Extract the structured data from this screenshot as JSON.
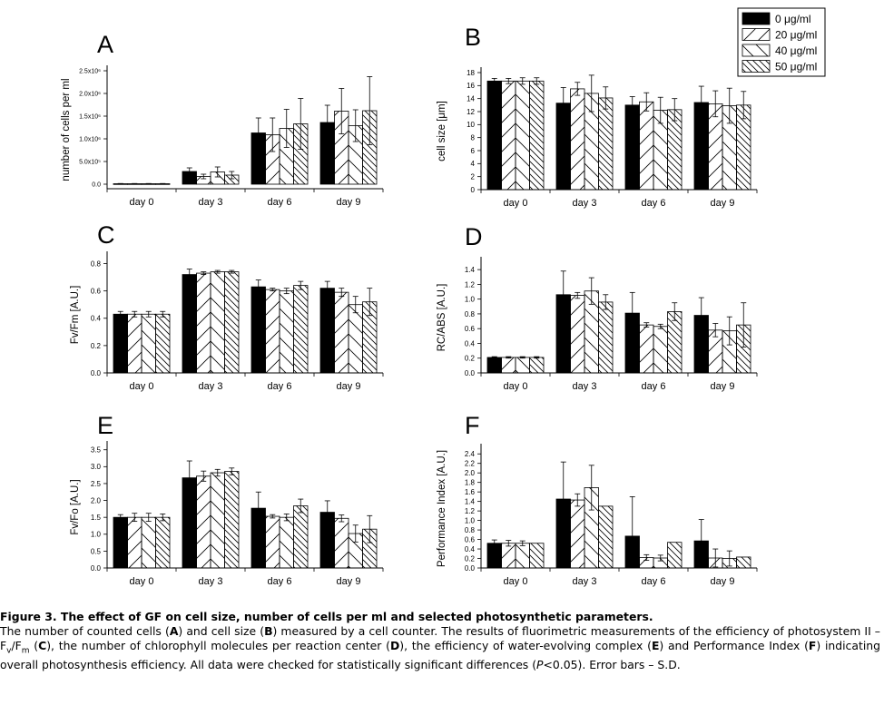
{
  "legend": {
    "placement": "top-right",
    "entries": [
      {
        "label": "0 μg/ml",
        "pattern": "solid-black"
      },
      {
        "label": "20 μg/ml",
        "pattern": "hatch-right-sparse"
      },
      {
        "label": "40 μg/ml",
        "pattern": "hatch-left-sparse"
      },
      {
        "label": "50 μg/ml",
        "pattern": "hatch-left-dense"
      }
    ]
  },
  "chart_data": [
    {
      "type": "bar",
      "panel": "A",
      "ylabel": "number of cells per ml",
      "categories": [
        "day 0",
        "day 3",
        "day 6",
        "day 9"
      ],
      "ylim": [
        -100000,
        2500000
      ],
      "yticks": [
        0,
        500000,
        1000000,
        1500000,
        2000000,
        2500000
      ],
      "ytick_labels": [
        "0.0",
        "5.0x10⁵",
        "1.0x10⁶",
        "1.5x10⁶",
        "2.0x10⁶",
        "2.5x10⁶"
      ],
      "series": [
        {
          "values": [
            10000,
            280000,
            1130000,
            1360000
          ],
          "errors": [
            5000,
            80000,
            330000,
            380000
          ]
        },
        {
          "values": [
            10000,
            170000,
            1090000,
            1610000
          ],
          "errors": [
            5000,
            50000,
            370000,
            500000
          ]
        },
        {
          "values": [
            10000,
            270000,
            1230000,
            1290000
          ],
          "errors": [
            5000,
            110000,
            420000,
            350000
          ]
        },
        {
          "values": [
            10000,
            200000,
            1330000,
            1620000
          ],
          "errors": [
            5000,
            80000,
            560000,
            750000
          ]
        }
      ]
    },
    {
      "type": "bar",
      "panel": "B",
      "ylabel": "cell size [μm]",
      "categories": [
        "day 0",
        "day 3",
        "day 6",
        "day 9"
      ],
      "ylim": [
        0,
        18
      ],
      "yticks": [
        0,
        2,
        4,
        6,
        8,
        10,
        12,
        14,
        16,
        18
      ],
      "ytick_labels": [
        "0",
        "2",
        "4",
        "6",
        "8",
        "10",
        "12",
        "14",
        "16",
        "18"
      ],
      "series": [
        {
          "values": [
            16.7,
            13.3,
            13.0,
            13.4
          ],
          "errors": [
            0.4,
            2.4,
            1.3,
            2.5
          ]
        },
        {
          "values": [
            16.7,
            15.5,
            13.5,
            13.2
          ],
          "errors": [
            0.4,
            1.0,
            1.4,
            2.0
          ]
        },
        {
          "values": [
            16.7,
            14.8,
            12.2,
            12.9
          ],
          "errors": [
            0.5,
            2.8,
            2.0,
            2.7
          ]
        },
        {
          "values": [
            16.7,
            14.1,
            12.3,
            13.0
          ],
          "errors": [
            0.5,
            1.7,
            1.7,
            2.1
          ]
        }
      ]
    },
    {
      "type": "bar",
      "panel": "C",
      "ylabel": "Fv/Fm [A.U.]",
      "categories": [
        "day 0",
        "day 3",
        "day 6",
        "day 9"
      ],
      "ylim": [
        0,
        0.85
      ],
      "yticks": [
        0.0,
        0.2,
        0.4,
        0.6,
        0.8
      ],
      "ytick_labels": [
        "0.0",
        "0.2",
        "0.4",
        "0.6",
        "0.8"
      ],
      "series": [
        {
          "values": [
            0.43,
            0.72,
            0.63,
            0.62
          ],
          "errors": [
            0.02,
            0.04,
            0.05,
            0.05
          ]
        },
        {
          "values": [
            0.43,
            0.73,
            0.61,
            0.59
          ],
          "errors": [
            0.02,
            0.01,
            0.01,
            0.03
          ]
        },
        {
          "values": [
            0.43,
            0.74,
            0.6,
            0.5
          ],
          "errors": [
            0.02,
            0.01,
            0.02,
            0.06
          ]
        },
        {
          "values": [
            0.43,
            0.74,
            0.64,
            0.52
          ],
          "errors": [
            0.02,
            0.01,
            0.03,
            0.1
          ]
        }
      ]
    },
    {
      "type": "bar",
      "panel": "D",
      "ylabel": "RC/ABS [A.U.]",
      "categories": [
        "day 0",
        "day 3",
        "day 6",
        "day 9"
      ],
      "ylim": [
        0,
        1.5
      ],
      "yticks": [
        0.0,
        0.2,
        0.4,
        0.6,
        0.8,
        1.0,
        1.2,
        1.4
      ],
      "ytick_labels": [
        "0.0",
        "0.2",
        "0.4",
        "0.6",
        "0.8",
        "1.0",
        "1.2",
        "1.4"
      ],
      "series": [
        {
          "values": [
            0.21,
            1.06,
            0.81,
            0.78
          ],
          "errors": [
            0.01,
            0.32,
            0.28,
            0.24
          ]
        },
        {
          "values": [
            0.21,
            1.05,
            0.65,
            0.58
          ],
          "errors": [
            0.01,
            0.04,
            0.03,
            0.09
          ]
        },
        {
          "values": [
            0.21,
            1.11,
            0.63,
            0.57
          ],
          "errors": [
            0.01,
            0.18,
            0.03,
            0.19
          ]
        },
        {
          "values": [
            0.21,
            0.96,
            0.83,
            0.65
          ],
          "errors": [
            0.01,
            0.1,
            0.12,
            0.3
          ]
        }
      ]
    },
    {
      "type": "bar",
      "panel": "E",
      "ylabel": "Fv/Fo [A.U.]",
      "categories": [
        "day 0",
        "day 3",
        "day 6",
        "day 9"
      ],
      "ylim": [
        0,
        3.6
      ],
      "yticks": [
        0.0,
        0.5,
        1.0,
        1.5,
        2.0,
        2.5,
        3.0,
        3.5
      ],
      "ytick_labels": [
        "0.0",
        "0.5",
        "1.0",
        "1.5",
        "2.0",
        "2.5",
        "3.0",
        "3.5"
      ],
      "series": [
        {
          "values": [
            1.5,
            2.67,
            1.77,
            1.65
          ],
          "errors": [
            0.08,
            0.5,
            0.48,
            0.34
          ]
        },
        {
          "values": [
            1.5,
            2.72,
            1.53,
            1.47
          ],
          "errors": [
            0.12,
            0.15,
            0.05,
            0.1
          ]
        },
        {
          "values": [
            1.5,
            2.82,
            1.5,
            1.02
          ],
          "errors": [
            0.12,
            0.1,
            0.1,
            0.25
          ]
        },
        {
          "values": [
            1.5,
            2.86,
            1.84,
            1.15
          ],
          "errors": [
            0.1,
            0.1,
            0.2,
            0.4
          ]
        }
      ]
    },
    {
      "type": "bar",
      "panel": "F",
      "ylabel": "Performance Index [A.U.]",
      "categories": [
        "day 0",
        "day 3",
        "day 6",
        "day 9"
      ],
      "ylim": [
        0,
        2.5
      ],
      "yticks": [
        0.0,
        0.2,
        0.4,
        0.6,
        0.8,
        1.0,
        1.2,
        1.4,
        1.6,
        1.8,
        2.0,
        2.2,
        2.4
      ],
      "ytick_labels": [
        "0.0",
        "0.2",
        "0.4",
        "0.6",
        "0.8",
        "1.0",
        "1.2",
        "1.4",
        "1.6",
        "1.8",
        "2.0",
        "2.2",
        "2.4"
      ],
      "series": [
        {
          "values": [
            0.52,
            1.45,
            0.67,
            0.57
          ],
          "errors": [
            0.07,
            0.78,
            0.83,
            0.45
          ]
        },
        {
          "values": [
            0.52,
            1.43,
            0.22,
            0.21
          ],
          "errors": [
            0.06,
            0.13,
            0.06,
            0.19
          ]
        },
        {
          "values": [
            0.52,
            1.69,
            0.21,
            0.2
          ],
          "errors": [
            0.05,
            0.47,
            0.06,
            0.16
          ]
        },
        {
          "values": [
            0.52,
            1.3,
            0.54,
            0.23
          ],
          "errors": [
            0.0,
            0.0,
            0.0,
            0.0
          ]
        }
      ]
    }
  ],
  "caption": {
    "title": "Figure 3. The effect of GF on cell size, number of cells per ml and selected photosynthetic parameters.",
    "body": [
      {
        "t": "The number of counted cells ("
      },
      {
        "t": "A",
        "b": true
      },
      {
        "t": ") and cell size ("
      },
      {
        "t": "B",
        "b": true
      },
      {
        "t": ") measured by a cell counter. The results of fluorimetric measurements of the efficiency of photosystem II – F"
      },
      {
        "t": "v",
        "sub": true
      },
      {
        "t": "/F"
      },
      {
        "t": "m",
        "sub": true
      },
      {
        "t": " ("
      },
      {
        "t": "C",
        "b": true
      },
      {
        "t": "), the number of chlorophyll molecules per reaction center ("
      },
      {
        "t": "D",
        "b": true
      },
      {
        "t": "), the efficiency of water-evolving complex ("
      },
      {
        "t": "E",
        "b": true
      },
      {
        "t": ") and Performance Index ("
      },
      {
        "t": "F",
        "b": true
      },
      {
        "t": ") indicating overall photosynthesis efficiency. All data were checked for statistically significant differences ("
      },
      {
        "t": "P",
        "i": true
      },
      {
        "t": "<0.05). Error bars – S.D."
      }
    ]
  }
}
